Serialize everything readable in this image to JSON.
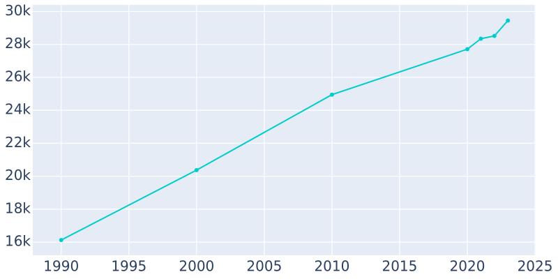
{
  "chart_data": {
    "type": "line",
    "x": [
      1990,
      2000,
      2010,
      2020,
      2021,
      2022,
      2023
    ],
    "series": [
      {
        "color": "#00cccc",
        "values": [
          16127,
          20370,
          24950,
          27710,
          28346,
          28515,
          29449
        ]
      }
    ],
    "xlim": [
      1987.9,
      2025.05
    ],
    "xticks": [
      1990,
      1995,
      2000,
      2005,
      2010,
      2015,
      2020,
      2025
    ],
    "ylim": [
      15200,
      30400
    ],
    "yticks": [
      {
        "value": 16000,
        "label": "16k"
      },
      {
        "value": 18000,
        "label": "18k"
      },
      {
        "value": 20000,
        "label": "20k"
      },
      {
        "value": 22000,
        "label": "22k"
      },
      {
        "value": 24000,
        "label": "24k"
      },
      {
        "value": 26000,
        "label": "26k"
      },
      {
        "value": 28000,
        "label": "28k"
      },
      {
        "value": 30000,
        "label": "30k"
      }
    ],
    "grid": true
  }
}
